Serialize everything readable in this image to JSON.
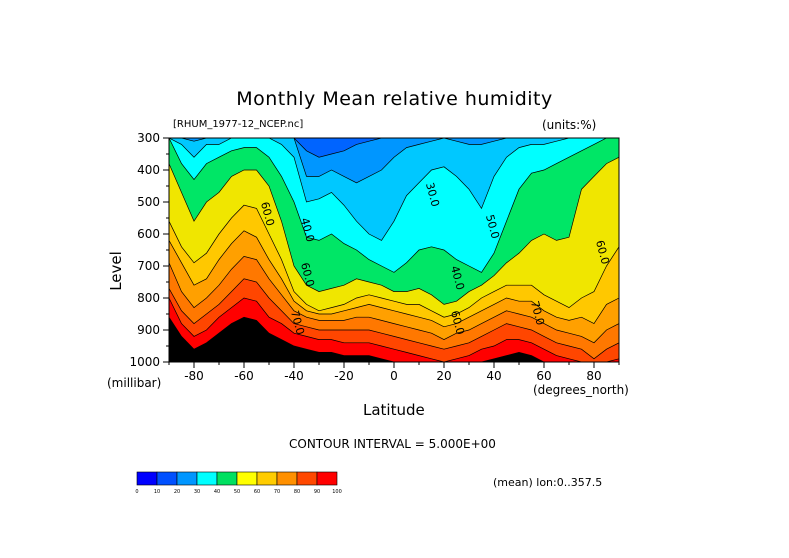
{
  "figure": {
    "title": "Monthly Mean relative humidity",
    "dataset": "[RHUM_1977-12_NCEP.nc]",
    "units": "(units:%)",
    "contour_interval_text": "CONTOUR INTERVAL = 5.000E+00",
    "averaging_text": "(mean) lon:0..357.5"
  },
  "chart_data": {
    "type": "heatmap",
    "title": "Monthly Mean relative humidity",
    "xlabel": "Latitude",
    "x_unit": "(degrees_north)",
    "ylabel": "Level",
    "y_unit": "(millibar)",
    "xlim": [
      -90,
      90
    ],
    "ylim": [
      1000,
      300
    ],
    "x_ticks": [
      -80,
      -60,
      -40,
      -20,
      0,
      20,
      40,
      60,
      80
    ],
    "y_ticks": [
      300,
      400,
      500,
      600,
      700,
      800,
      900,
      1000
    ],
    "contour_interval": 5,
    "contour_labels": [
      {
        "text": "60.0",
        "lat": -52,
        "level": 540
      },
      {
        "text": "40.0",
        "lat": -36,
        "level": 590
      },
      {
        "text": "60.0",
        "lat": -36,
        "level": 730
      },
      {
        "text": "70.0",
        "lat": -40,
        "level": 880
      },
      {
        "text": "30.0",
        "lat": 14,
        "level": 480
      },
      {
        "text": "40.0",
        "lat": 24,
        "level": 740
      },
      {
        "text": "60.0",
        "lat": 24,
        "level": 880
      },
      {
        "text": "50.0",
        "lat": 38,
        "level": 580
      },
      {
        "text": "70.0",
        "lat": 56,
        "level": 850
      },
      {
        "text": "60.0",
        "lat": 82,
        "level": 660
      }
    ],
    "columns": [
      {
        "lat": -90,
        "b": [
          300,
          300,
          300,
          300,
          300,
          300,
          300,
          380,
          560,
          620,
          690,
          770,
          800,
          860
        ]
      },
      {
        "lat": -85,
        "b": [
          300,
          300,
          300,
          300,
          300,
          320,
          380,
          470,
          640,
          690,
          780,
          840,
          880,
          920
        ]
      },
      {
        "lat": -80,
        "b": [
          300,
          300,
          300,
          300,
          310,
          360,
          430,
          560,
          690,
          760,
          830,
          880,
          920,
          960
        ]
      },
      {
        "lat": -75,
        "b": [
          300,
          300,
          300,
          300,
          300,
          320,
          380,
          500,
          660,
          740,
          800,
          850,
          900,
          940
        ]
      },
      {
        "lat": -70,
        "b": [
          300,
          300,
          300,
          300,
          300,
          320,
          360,
          470,
          600,
          680,
          760,
          820,
          860,
          910
        ]
      },
      {
        "lat": -65,
        "b": [
          300,
          300,
          300,
          300,
          300,
          300,
          340,
          420,
          550,
          630,
          710,
          780,
          830,
          880
        ]
      },
      {
        "lat": -60,
        "b": [
          300,
          300,
          300,
          300,
          300,
          300,
          330,
          400,
          510,
          590,
          670,
          740,
          800,
          860
        ]
      },
      {
        "lat": -55,
        "b": [
          300,
          300,
          300,
          300,
          300,
          300,
          330,
          400,
          520,
          610,
          680,
          750,
          810,
          870
        ]
      },
      {
        "lat": -50,
        "b": [
          300,
          300,
          300,
          300,
          300,
          300,
          360,
          450,
          600,
          680,
          740,
          800,
          860,
          910
        ]
      },
      {
        "lat": -45,
        "b": [
          300,
          300,
          300,
          300,
          300,
          320,
          420,
          560,
          680,
          740,
          790,
          840,
          880,
          930
        ]
      },
      {
        "lat": -40,
        "b": [
          300,
          300,
          300,
          300,
          300,
          360,
          500,
          700,
          780,
          810,
          840,
          880,
          910,
          950
        ]
      },
      {
        "lat": -35,
        "b": [
          300,
          300,
          300,
          340,
          420,
          500,
          610,
          760,
          820,
          840,
          860,
          890,
          920,
          960
        ]
      },
      {
        "lat": -30,
        "b": [
          300,
          300,
          300,
          360,
          420,
          490,
          620,
          780,
          840,
          850,
          870,
          900,
          930,
          970
        ]
      },
      {
        "lat": -25,
        "b": [
          300,
          300,
          300,
          350,
          400,
          470,
          600,
          770,
          830,
          850,
          870,
          900,
          930,
          970
        ]
      },
      {
        "lat": -20,
        "b": [
          300,
          300,
          300,
          340,
          420,
          510,
          630,
          760,
          820,
          840,
          870,
          900,
          940,
          980
        ]
      },
      {
        "lat": -15,
        "b": [
          300,
          300,
          300,
          320,
          440,
          560,
          650,
          740,
          800,
          830,
          860,
          900,
          940,
          980
        ]
      },
      {
        "lat": -10,
        "b": [
          300,
          300,
          300,
          310,
          420,
          600,
          680,
          750,
          790,
          820,
          860,
          900,
          940,
          980
        ]
      },
      {
        "lat": -5,
        "b": [
          300,
          300,
          300,
          300,
          400,
          620,
          700,
          760,
          800,
          830,
          870,
          910,
          950,
          990
        ]
      },
      {
        "lat": 0,
        "b": [
          300,
          300,
          300,
          300,
          360,
          560,
          720,
          780,
          810,
          840,
          880,
          920,
          960,
          1000
        ]
      },
      {
        "lat": 5,
        "b": [
          300,
          300,
          300,
          300,
          330,
          480,
          690,
          780,
          820,
          850,
          890,
          930,
          970,
          1000
        ]
      },
      {
        "lat": 10,
        "b": [
          300,
          300,
          300,
          300,
          320,
          440,
          650,
          770,
          820,
          860,
          900,
          940,
          980,
          1000
        ]
      },
      {
        "lat": 15,
        "b": [
          300,
          300,
          300,
          300,
          310,
          400,
          640,
          790,
          840,
          870,
          910,
          950,
          990,
          1000
        ]
      },
      {
        "lat": 20,
        "b": [
          300,
          300,
          300,
          300,
          300,
          390,
          650,
          820,
          860,
          890,
          930,
          960,
          1000,
          1000
        ]
      },
      {
        "lat": 25,
        "b": [
          300,
          300,
          300,
          300,
          310,
          420,
          680,
          810,
          850,
          880,
          910,
          950,
          990,
          1000
        ]
      },
      {
        "lat": 30,
        "b": [
          300,
          300,
          300,
          300,
          320,
          460,
          700,
          780,
          830,
          860,
          900,
          940,
          980,
          1000
        ]
      },
      {
        "lat": 35,
        "b": [
          300,
          300,
          300,
          300,
          320,
          520,
          720,
          760,
          800,
          840,
          880,
          920,
          960,
          1000
        ]
      },
      {
        "lat": 40,
        "b": [
          300,
          300,
          300,
          300,
          310,
          420,
          660,
          730,
          780,
          820,
          860,
          900,
          950,
          990
        ]
      },
      {
        "lat": 45,
        "b": [
          300,
          300,
          300,
          300,
          300,
          360,
          560,
          690,
          760,
          800,
          840,
          880,
          930,
          980
        ]
      },
      {
        "lat": 50,
        "b": [
          300,
          300,
          300,
          300,
          300,
          330,
          460,
          660,
          760,
          810,
          850,
          890,
          930,
          970
        ]
      },
      {
        "lat": 55,
        "b": [
          300,
          300,
          300,
          300,
          300,
          320,
          410,
          620,
          760,
          810,
          860,
          900,
          940,
          980
        ]
      },
      {
        "lat": 60,
        "b": [
          300,
          300,
          300,
          300,
          300,
          320,
          400,
          600,
          790,
          840,
          880,
          920,
          960,
          1000
        ]
      },
      {
        "lat": 65,
        "b": [
          300,
          300,
          300,
          300,
          300,
          310,
          380,
          620,
          810,
          860,
          900,
          940,
          980,
          1000
        ]
      },
      {
        "lat": 70,
        "b": [
          300,
          300,
          300,
          300,
          300,
          300,
          360,
          610,
          830,
          870,
          910,
          950,
          990,
          1000
        ]
      },
      {
        "lat": 75,
        "b": [
          300,
          300,
          300,
          300,
          300,
          300,
          340,
          460,
          800,
          860,
          920,
          960,
          1000,
          1000
        ]
      },
      {
        "lat": 80,
        "b": [
          300,
          300,
          300,
          300,
          300,
          300,
          320,
          420,
          780,
          880,
          940,
          990,
          1000,
          1000
        ]
      },
      {
        "lat": 85,
        "b": [
          300,
          300,
          300,
          300,
          300,
          300,
          300,
          380,
          700,
          820,
          900,
          960,
          1000,
          1000
        ]
      },
      {
        "lat": 90,
        "b": [
          300,
          300,
          300,
          300,
          300,
          300,
          300,
          360,
          640,
          800,
          880,
          940,
          990,
          1000
        ]
      }
    ],
    "colorbar": {
      "ticks": [
        "0",
        "10",
        "20",
        "30",
        "40",
        "50",
        "60",
        "70",
        "80",
        "90",
        "100"
      ],
      "colors": [
        "#9a00c8",
        "#0000ff",
        "#0050ff",
        "#0096ff",
        "#00ffff",
        "#00e060",
        "#ffff00",
        "#ffcc00",
        "#ff9000",
        "#ff4800",
        "#ff0000"
      ]
    },
    "fill_colors": [
      "#2d00b4",
      "#0000e0",
      "#0028f0",
      "#0064ff",
      "#0096ff",
      "#00c8ff",
      "#00ffff",
      "#00e666",
      "#f0e600",
      "#ffc800",
      "#ffa000",
      "#ff7800",
      "#ff4600",
      "#ff0000"
    ]
  }
}
